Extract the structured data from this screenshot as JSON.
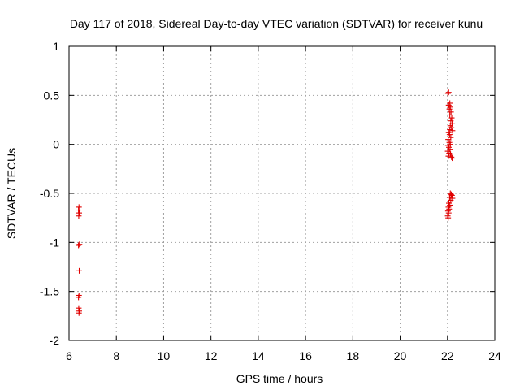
{
  "chart_data": {
    "type": "scatter",
    "title": "Day 117 of 2018, Sidereal Day-to-day VTEC variation (SDTVAR) for receiver kunu",
    "xlabel": "GPS time / hours",
    "ylabel": "SDTVAR / TECUs",
    "xlim": [
      6,
      24
    ],
    "ylim": [
      -2,
      1
    ],
    "xticks": [
      6,
      8,
      10,
      12,
      14,
      16,
      18,
      20,
      22,
      24
    ],
    "yticks": [
      -2,
      -1.5,
      -1,
      -0.5,
      0,
      0.5,
      1
    ],
    "xtick_labels": [
      "6",
      "8",
      "10",
      "12",
      "14",
      "16",
      "18",
      "20",
      "22",
      "24"
    ],
    "ytick_labels": [
      "-2",
      "-1.5",
      "-1",
      "-0.5",
      "0",
      "0.5",
      "1"
    ],
    "grid": true,
    "marker": "plus",
    "series": [
      {
        "name": "SDTVAR",
        "color": "#e00000",
        "points": [
          [
            6.42,
            -0.64
          ],
          [
            6.4,
            -0.67
          ],
          [
            6.43,
            -0.7
          ],
          [
            6.41,
            -0.73
          ],
          [
            6.44,
            -1.02
          ],
          [
            6.4,
            -1.03
          ],
          [
            6.43,
            -1.29
          ],
          [
            6.42,
            -1.54
          ],
          [
            6.4,
            -1.56
          ],
          [
            6.41,
            -1.67
          ],
          [
            6.43,
            -1.7
          ],
          [
            6.42,
            -1.72
          ],
          [
            22.05,
            0.53
          ],
          [
            22.02,
            0.52
          ],
          [
            22.1,
            0.42
          ],
          [
            22.05,
            0.4
          ],
          [
            22.12,
            0.38
          ],
          [
            22.08,
            0.36
          ],
          [
            22.15,
            0.33
          ],
          [
            22.1,
            0.3
          ],
          [
            22.18,
            0.27
          ],
          [
            22.14,
            0.24
          ],
          [
            22.2,
            0.21
          ],
          [
            22.12,
            0.19
          ],
          [
            22.17,
            0.17
          ],
          [
            22.1,
            0.15
          ],
          [
            22.21,
            0.14
          ],
          [
            22.05,
            0.12
          ],
          [
            22.09,
            0.1
          ],
          [
            22.14,
            0.07
          ],
          [
            22.03,
            0.05
          ],
          [
            22.08,
            0.02
          ],
          [
            22.12,
            0.0
          ],
          [
            22.02,
            -0.01
          ],
          [
            22.06,
            -0.03
          ],
          [
            22.11,
            -0.05
          ],
          [
            22.01,
            -0.07
          ],
          [
            22.07,
            -0.09
          ],
          [
            22.13,
            -0.1
          ],
          [
            22.04,
            -0.12
          ],
          [
            22.17,
            -0.13
          ],
          [
            22.2,
            -0.14
          ],
          [
            22.12,
            -0.5
          ],
          [
            22.16,
            -0.51
          ],
          [
            22.19,
            -0.52
          ],
          [
            22.09,
            -0.54
          ],
          [
            22.21,
            -0.55
          ],
          [
            22.14,
            -0.57
          ],
          [
            22.06,
            -0.6
          ],
          [
            22.1,
            -0.62
          ],
          [
            22.04,
            -0.64
          ],
          [
            22.07,
            -0.66
          ],
          [
            22.02,
            -0.68
          ],
          [
            22.05,
            -0.7
          ],
          [
            22.01,
            -0.73
          ],
          [
            22.03,
            -0.75
          ]
        ]
      }
    ]
  }
}
